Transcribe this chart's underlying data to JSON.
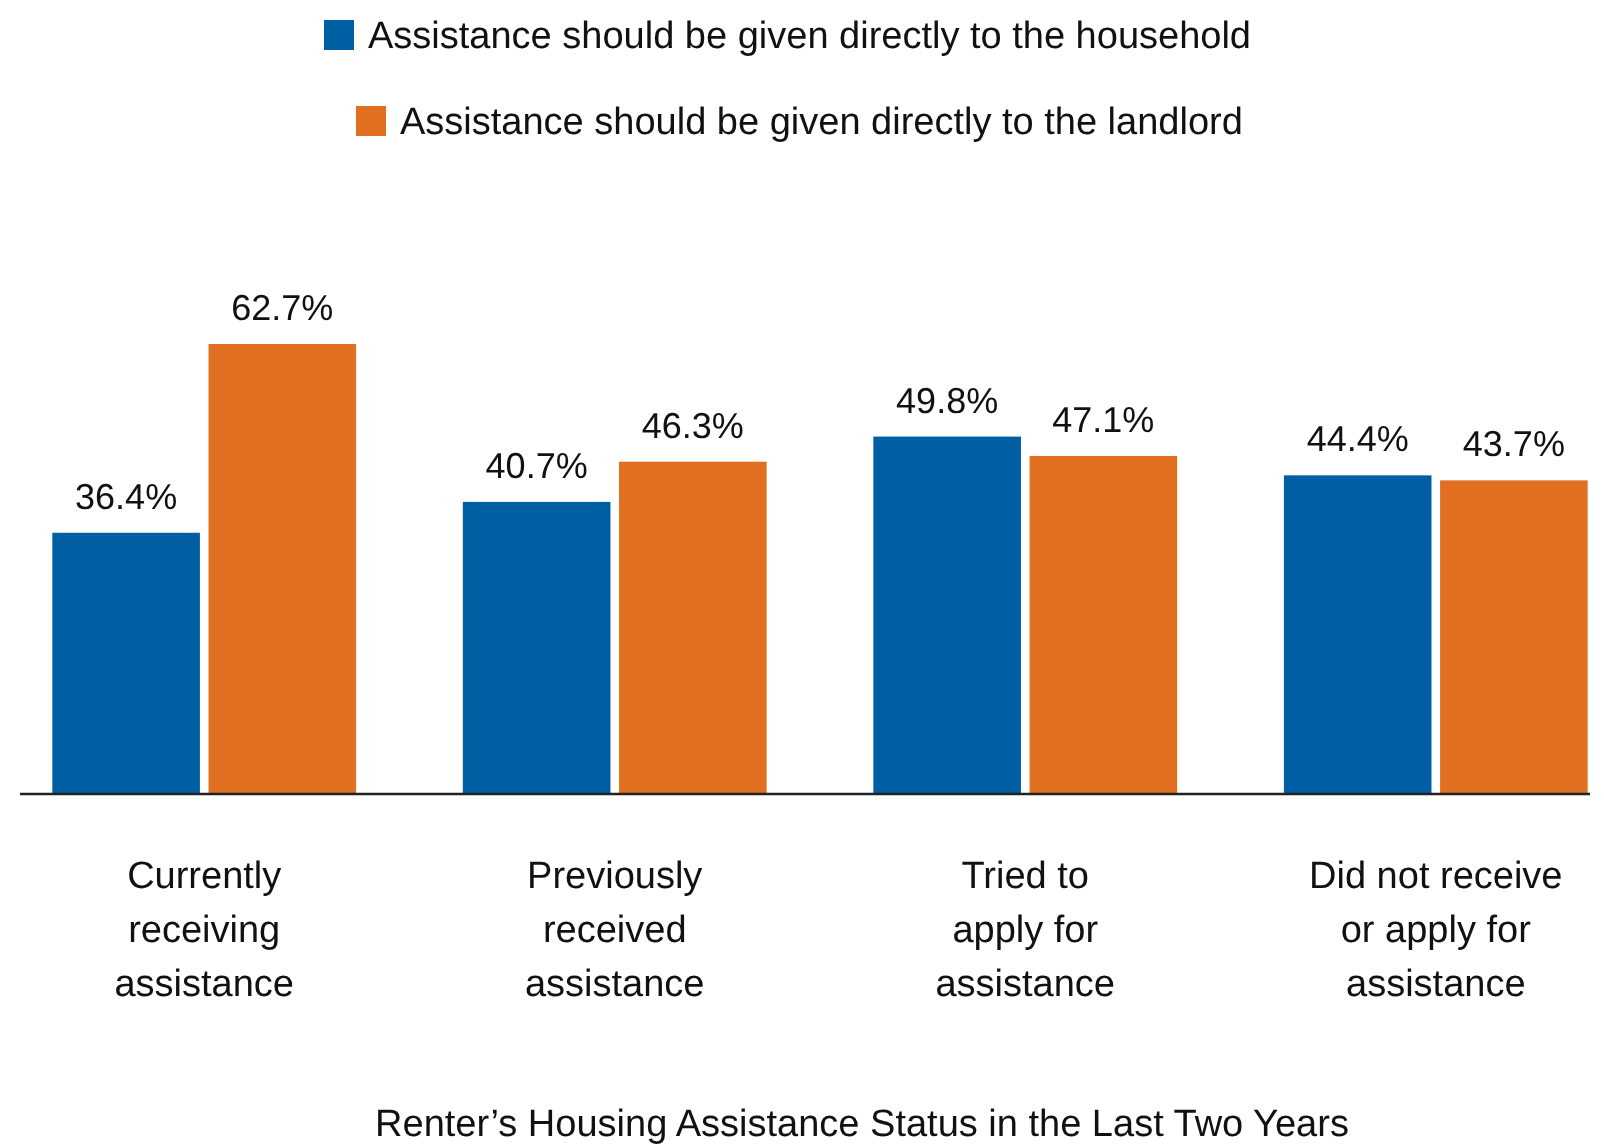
{
  "chart_data": {
    "type": "bar",
    "xlabel": "Renter’s Housing Assistance Status in the Last Two Years",
    "categories": [
      "Currently\nreceiving\nassistance",
      "Previously\nreceived\nassistance",
      "Tried to\napply for\nassistance",
      "Did not receive\nor apply for\nassistance"
    ],
    "series": [
      {
        "name": "Assistance should be given directly to the household",
        "color": "#005ea2",
        "values": [
          36.4,
          40.7,
          49.8,
          44.4
        ],
        "value_labels": [
          "36.4%",
          "40.7%",
          "49.8%",
          "44.4%"
        ]
      },
      {
        "name": "Assistance should be given directly to the landlord",
        "color": "#e07020",
        "values": [
          62.7,
          46.3,
          47.1,
          43.7
        ],
        "value_labels": [
          "62.7%",
          "46.3%",
          "47.1%",
          "43.7%"
        ]
      }
    ],
    "legend": "top"
  }
}
